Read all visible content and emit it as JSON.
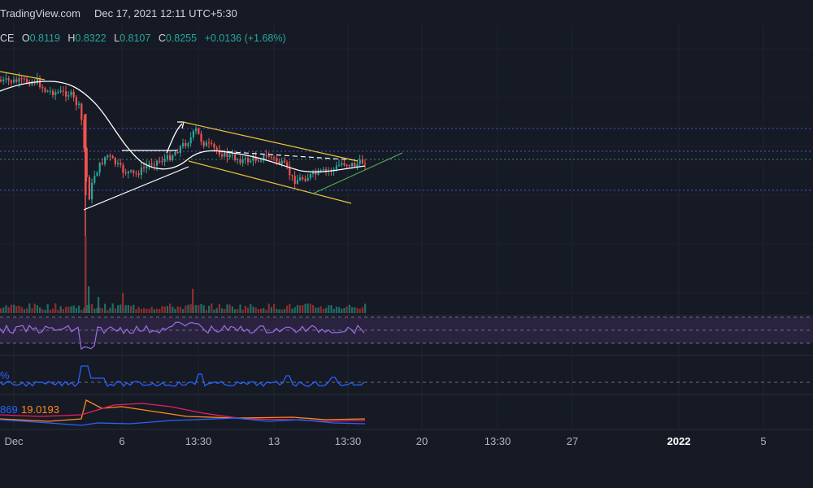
{
  "header": {
    "source": "TradingView.com",
    "date_text": "Dec 17, 2021 12:11 UTC+5:30"
  },
  "ohlc": {
    "symbol_tail": "CE",
    "o_label": "O",
    "o": "0.8119",
    "h_label": "H",
    "h": "0.8322",
    "l_label": "L",
    "l": "0.8107",
    "c_label": "C",
    "c": "0.8255",
    "change": "+0.0136 (+1.68%)"
  },
  "indicators": {
    "pct_label": "%",
    "val_blue": "869",
    "val_orange": "19.0193"
  },
  "colors": {
    "background": "#161a25",
    "up": "#26a69a",
    "down": "#ef5350",
    "ma": "#ffffff",
    "channel": "#e8c53a",
    "trend": "#4caf50",
    "rsi": "#9c6ee6",
    "line_blue": "#2962ff",
    "line_orange": "#ff8a1c",
    "line_red": "#e91e63"
  },
  "chart_data": {
    "type": "candlestick",
    "x_ticks": [
      "Dec",
      "6",
      "13:30",
      "13",
      "13:30",
      "20",
      "13:30",
      "27",
      "2022",
      "5"
    ],
    "x_tick_bold": "2022",
    "horizontal_levels": [
      "dotted-blue-1",
      "dotted-blue-2",
      "dotted-blue-3",
      "dotted-teal"
    ],
    "grid": true,
    "panes": [
      "price",
      "volume",
      "rsi",
      "percent",
      "dmi"
    ]
  }
}
